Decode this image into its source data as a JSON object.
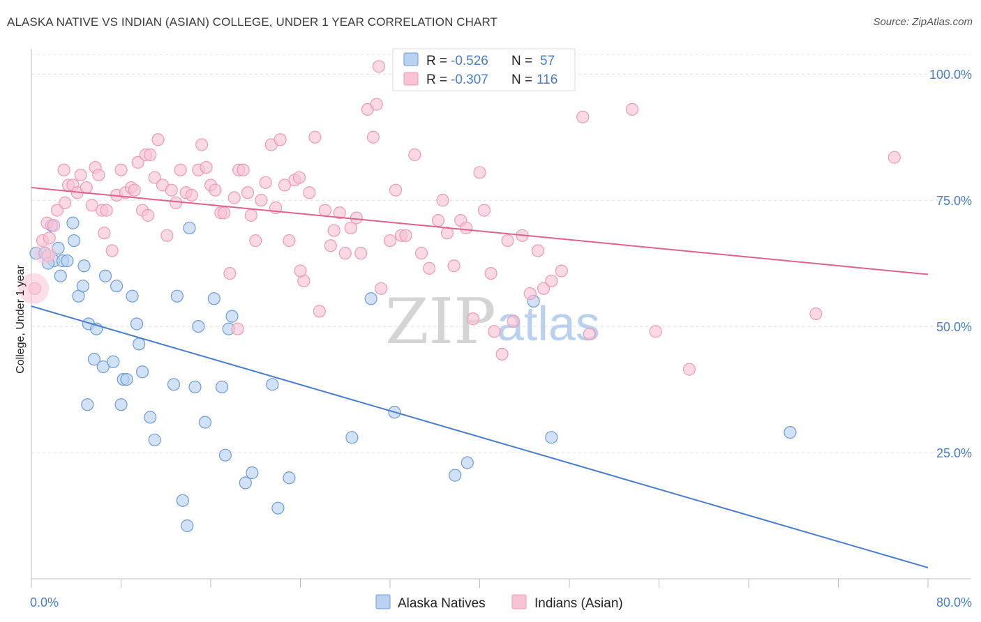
{
  "title": "ALASKA NATIVE VS INDIAN (ASIAN) COLLEGE, UNDER 1 YEAR CORRELATION CHART",
  "source": "Source: ZipAtlas.com",
  "watermark": {
    "part1": "ZIP",
    "part2": "atlas"
  },
  "colors": {
    "blue": "#4a7cc9",
    "blue_fill": "#b9d2f2",
    "blue_stroke": "#6f9ad6",
    "pink": "#e0608e",
    "pink_fill": "#f8c3d5",
    "pink_stroke": "#ec9ab6"
  },
  "legend_top": {
    "rows": [
      {
        "r_label": "R = ",
        "r_value": "-0.526",
        "n_label": "N = ",
        "n_value": "57"
      },
      {
        "r_label": "R = ",
        "r_value": "-0.307",
        "n_label": "N = ",
        "n_value": "116"
      }
    ]
  },
  "legend_bottom": [
    "Alaska Natives",
    "Indians (Asian)"
  ],
  "chart_data": {
    "type": "scatter",
    "title": "ALASKA NATIVE VS INDIAN (ASIAN) COLLEGE, UNDER 1 YEAR CORRELATION CHART",
    "xlabel": "",
    "ylabel": "College, Under 1 year",
    "xlim": [
      0,
      80
    ],
    "ylim": [
      0,
      105
    ],
    "x_tick_labels": [
      "0.0%",
      "80.0%"
    ],
    "y_ticks": [
      25,
      50,
      75,
      100
    ],
    "y_tick_labels": [
      "25.0%",
      "50.0%",
      "75.0%",
      "100.0%"
    ],
    "grid": true,
    "series": [
      {
        "name": "Alaska Natives",
        "color": "#4a7cc9",
        "R": -0.526,
        "N": 57,
        "trend": {
          "x": [
            0,
            80
          ],
          "y": [
            54.0,
            2.2
          ]
        },
        "points": [
          [
            0.4,
            64.5
          ],
          [
            1.2,
            64.5
          ],
          [
            1.8,
            70.0
          ],
          [
            2.0,
            63.0
          ],
          [
            2.4,
            65.5
          ],
          [
            2.6,
            60.0
          ],
          [
            2.8,
            63.0
          ],
          [
            3.2,
            63.0
          ],
          [
            3.7,
            70.5
          ],
          [
            3.8,
            67.0
          ],
          [
            4.2,
            56.0
          ],
          [
            4.6,
            58.0
          ],
          [
            5.1,
            50.5
          ],
          [
            5.8,
            49.5
          ],
          [
            5.6,
            43.5
          ],
          [
            6.4,
            42.0
          ],
          [
            6.6,
            60.0
          ],
          [
            7.3,
            43.0
          ],
          [
            7.6,
            58.0
          ],
          [
            8.0,
            34.5
          ],
          [
            8.2,
            39.5
          ],
          [
            8.5,
            39.5
          ],
          [
            9.0,
            56.0
          ],
          [
            9.4,
            50.5
          ],
          [
            9.6,
            46.5
          ],
          [
            9.9,
            41.0
          ],
          [
            10.6,
            32.0
          ],
          [
            11.0,
            27.5
          ],
          [
            12.7,
            38.5
          ],
          [
            13.0,
            56.0
          ],
          [
            13.5,
            15.5
          ],
          [
            13.9,
            10.5
          ],
          [
            14.1,
            69.5
          ],
          [
            14.6,
            38.0
          ],
          [
            14.9,
            50.0
          ],
          [
            15.5,
            31.0
          ],
          [
            16.3,
            55.5
          ],
          [
            17.0,
            38.0
          ],
          [
            17.3,
            24.5
          ],
          [
            17.6,
            49.5
          ],
          [
            17.9,
            52.0
          ],
          [
            19.1,
            19.0
          ],
          [
            19.7,
            21.0
          ],
          [
            21.5,
            38.5
          ],
          [
            22.0,
            14.0
          ],
          [
            23.0,
            20.0
          ],
          [
            5.0,
            34.5
          ],
          [
            28.6,
            28.0
          ],
          [
            30.3,
            55.5
          ],
          [
            32.4,
            33.0
          ],
          [
            37.8,
            20.5
          ],
          [
            38.9,
            23.0
          ],
          [
            44.8,
            55.0
          ],
          [
            46.4,
            28.0
          ],
          [
            67.7,
            29.0
          ],
          [
            4.7,
            62.0
          ],
          [
            1.5,
            62.5
          ]
        ]
      },
      {
        "name": "Indians (Asian)",
        "color": "#e0608e",
        "R": -0.307,
        "N": 116,
        "trend": {
          "x": [
            0,
            80
          ],
          "y": [
            77.5,
            60.3
          ]
        },
        "points": [
          [
            0.3,
            57.5
          ],
          [
            1.0,
            67.0
          ],
          [
            1.4,
            70.5
          ],
          [
            1.5,
            64.0
          ],
          [
            2.0,
            70.0
          ],
          [
            2.3,
            73.0
          ],
          [
            3.0,
            74.5
          ],
          [
            3.3,
            78.0
          ],
          [
            3.7,
            78.0
          ],
          [
            4.1,
            76.5
          ],
          [
            4.4,
            80.0
          ],
          [
            4.9,
            77.5
          ],
          [
            5.4,
            74.0
          ],
          [
            5.7,
            81.5
          ],
          [
            6.0,
            80.0
          ],
          [
            6.3,
            73.0
          ],
          [
            6.7,
            73.0
          ],
          [
            7.2,
            65.0
          ],
          [
            7.6,
            76.0
          ],
          [
            8.0,
            81.0
          ],
          [
            8.4,
            76.5
          ],
          [
            8.9,
            77.5
          ],
          [
            9.2,
            77.0
          ],
          [
            9.5,
            82.5
          ],
          [
            9.9,
            73.0
          ],
          [
            10.2,
            84.0
          ],
          [
            10.6,
            84.0
          ],
          [
            11.0,
            79.5
          ],
          [
            11.3,
            87.0
          ],
          [
            11.7,
            78.0
          ],
          [
            12.1,
            68.0
          ],
          [
            12.5,
            77.0
          ],
          [
            12.9,
            74.5
          ],
          [
            13.3,
            81.0
          ],
          [
            13.8,
            76.5
          ],
          [
            14.3,
            76.0
          ],
          [
            14.9,
            81.0
          ],
          [
            15.2,
            86.0
          ],
          [
            15.6,
            81.5
          ],
          [
            16.0,
            78.0
          ],
          [
            16.4,
            77.0
          ],
          [
            16.9,
            72.5
          ],
          [
            17.2,
            72.5
          ],
          [
            17.7,
            60.5
          ],
          [
            18.1,
            75.5
          ],
          [
            18.5,
            81.0
          ],
          [
            18.9,
            81.0
          ],
          [
            19.3,
            76.5
          ],
          [
            19.6,
            72.0
          ],
          [
            20.0,
            67.0
          ],
          [
            20.5,
            75.0
          ],
          [
            20.9,
            78.5
          ],
          [
            21.4,
            86.0
          ],
          [
            21.8,
            73.5
          ],
          [
            22.2,
            87.0
          ],
          [
            22.6,
            78.0
          ],
          [
            23.0,
            67.0
          ],
          [
            23.5,
            79.0
          ],
          [
            23.9,
            79.5
          ],
          [
            24.3,
            59.0
          ],
          [
            24.8,
            76.5
          ],
          [
            25.3,
            87.5
          ],
          [
            25.7,
            53.0
          ],
          [
            26.2,
            73.0
          ],
          [
            26.7,
            66.0
          ],
          [
            27.0,
            69.0
          ],
          [
            27.5,
            72.5
          ],
          [
            28.0,
            64.5
          ],
          [
            28.5,
            69.5
          ],
          [
            29.0,
            71.5
          ],
          [
            29.4,
            64.5
          ],
          [
            30.0,
            93.0
          ],
          [
            30.5,
            87.5
          ],
          [
            30.8,
            94.0
          ],
          [
            31.2,
            57.5
          ],
          [
            32.0,
            67.0
          ],
          [
            32.5,
            77.0
          ],
          [
            33.0,
            68.0
          ],
          [
            33.4,
            68.0
          ],
          [
            34.2,
            84.0
          ],
          [
            34.8,
            64.5
          ],
          [
            35.5,
            61.5
          ],
          [
            36.3,
            71.0
          ],
          [
            36.7,
            75.0
          ],
          [
            37.1,
            68.5
          ],
          [
            37.7,
            62.0
          ],
          [
            38.3,
            71.0
          ],
          [
            38.8,
            69.5
          ],
          [
            39.4,
            51.5
          ],
          [
            40.0,
            80.5
          ],
          [
            40.4,
            73.0
          ],
          [
            41.0,
            60.5
          ],
          [
            41.3,
            49.0
          ],
          [
            42.0,
            44.5
          ],
          [
            42.5,
            67.0
          ],
          [
            43.0,
            51.0
          ],
          [
            43.8,
            68.0
          ],
          [
            44.5,
            56.5
          ],
          [
            45.2,
            65.0
          ],
          [
            45.7,
            57.5
          ],
          [
            46.4,
            59.0
          ],
          [
            47.3,
            61.0
          ],
          [
            49.2,
            91.5
          ],
          [
            49.8,
            48.5
          ],
          [
            53.6,
            93.0
          ],
          [
            55.7,
            49.0
          ],
          [
            58.7,
            41.5
          ],
          [
            70.0,
            52.5
          ],
          [
            77.0,
            83.5
          ],
          [
            31.0,
            101.5
          ],
          [
            18.4,
            49.5
          ],
          [
            1.6,
            67.5
          ],
          [
            2.9,
            81.0
          ],
          [
            6.5,
            68.5
          ],
          [
            10.4,
            72.0
          ],
          [
            24.0,
            61.0
          ]
        ]
      }
    ]
  }
}
